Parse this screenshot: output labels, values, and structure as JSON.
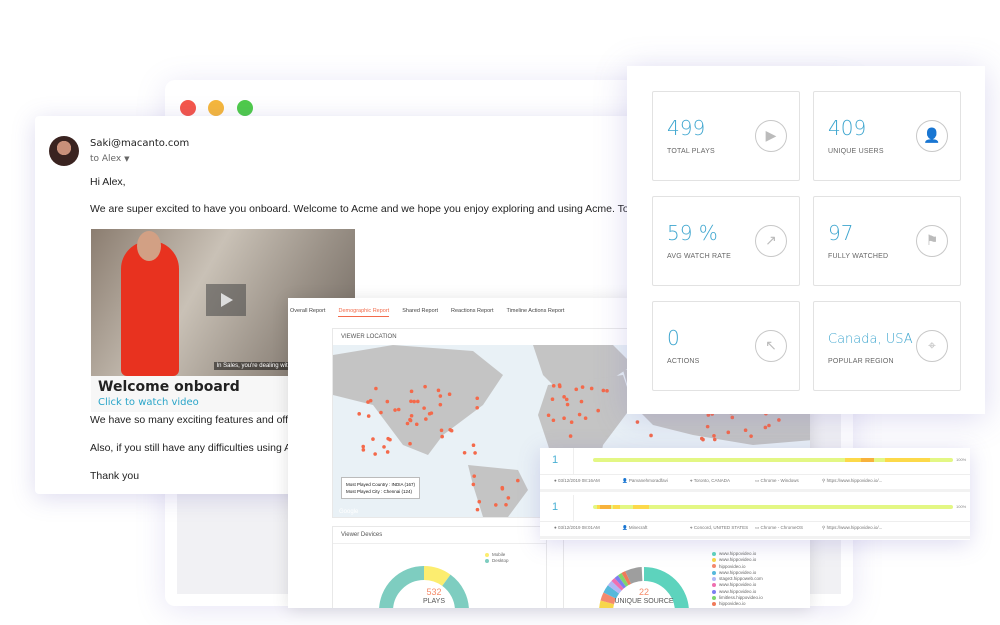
{
  "window": {
    "controls": [
      {
        "name": "close",
        "color": "#f5554a"
      },
      {
        "name": "minimize",
        "color": "#f6b73c"
      },
      {
        "name": "maximize",
        "color": "#4ecb4a"
      }
    ]
  },
  "email": {
    "from": "Saki@macanto.com",
    "to": "to  Alex",
    "greeting": "Hi Alex,",
    "body1": "We are super excited to have you onboard. Welcome to Acme and we hope you enjoy exploring and using Acme. To help you g",
    "video": {
      "caption": "In Sales, you're dealing with prospects all the time.",
      "title": "Welcome onboard",
      "link": "Click to watch video"
    },
    "body2": "We have so many exciting features and offers f",
    "body3": "Also, if you still have any difficulties using Acme",
    "closing": "Thank you"
  },
  "report": {
    "tabs": [
      "Overall Report",
      "Demographic Report",
      "Shared Report",
      "Reactions Report",
      "Timeline Actions Report"
    ],
    "active_tab": 1,
    "viewer_location": {
      "title": "VIEWER LOCATION",
      "most_played_country": "Most Played Country : INDIA (167)",
      "most_played_city": "Most Played City : Chennai (124)",
      "map_credit": "Google"
    },
    "devices": {
      "title": "Viewer Devices",
      "total": "532",
      "total_label": "PLAYS",
      "legend": [
        {
          "label": "Mobile",
          "color": "#fced6f"
        },
        {
          "label": "Desktop",
          "color": "#7ecdc0"
        }
      ],
      "values": [
        0.1,
        0.9
      ]
    },
    "sources": {
      "total": "22",
      "total_label": "UNIQUE SOURCE",
      "legend": [
        {
          "label": "www.hippovideo.io",
          "color": "#5dd3bd"
        },
        {
          "label": "www.hippovideo.io",
          "color": "#f7d64a"
        },
        {
          "label": "hippovideo.io",
          "color": "#f48a6e"
        },
        {
          "label": "www.hippovideo.io",
          "color": "#56b9db"
        },
        {
          "label": "stage3.hippoweb.com",
          "color": "#b2b7f5"
        },
        {
          "label": "www.hippovideo.io",
          "color": "#ef6fb0"
        },
        {
          "label": "www.hippovideo.io",
          "color": "#7d7ff0"
        },
        {
          "label": "limitless.hippovideo.io",
          "color": "#7ed66d"
        },
        {
          "label": "hippovideo.io",
          "color": "#f07a5a"
        }
      ],
      "values": [
        0.62,
        0.17,
        0.03,
        0.03,
        0.02,
        0.015,
        0.015,
        0.015,
        0.015,
        0.06
      ]
    }
  },
  "stats": [
    {
      "value": "499",
      "label": "TOTAL PLAYS",
      "icon": "play-icon"
    },
    {
      "value": "409",
      "label": "UNIQUE USERS",
      "icon": "user-icon"
    },
    {
      "value": "59 %",
      "label": "AVG WATCH RATE",
      "icon": "trend-up-icon"
    },
    {
      "value": "97",
      "label": "FULLY WATCHED",
      "icon": "flag-icon"
    },
    {
      "value": "0",
      "label": "ACTIONS",
      "icon": "cursor-click-icon"
    },
    {
      "value": "Canada, USA",
      "label": "POPULAR REGION",
      "icon": "location-pin-icon"
    }
  ],
  "sessions": [
    {
      "count": "1",
      "percent": "100%",
      "date": "03/12/2019 08:16AM",
      "user": "Parvanehmoradfavi",
      "location": "Toronto, CANADA",
      "browser": "Chrome - Windows",
      "source": "https://www.hippovideo.io/..."
    },
    {
      "count": "1",
      "percent": "100%",
      "date": "03/12/2019 08:01AM",
      "user": "Minecraft",
      "location": "Concord, UNITED STATES",
      "browser": "Chrome - ChromeOS",
      "source": "https://www.hippovideo.io/..."
    }
  ],
  "colors": {
    "accent": "#3fa6cf",
    "tab_active": "#f26b4b",
    "map_dot": "#f4694a",
    "map_land": "#c4c4c4",
    "map_water": "#e9f1f6"
  }
}
